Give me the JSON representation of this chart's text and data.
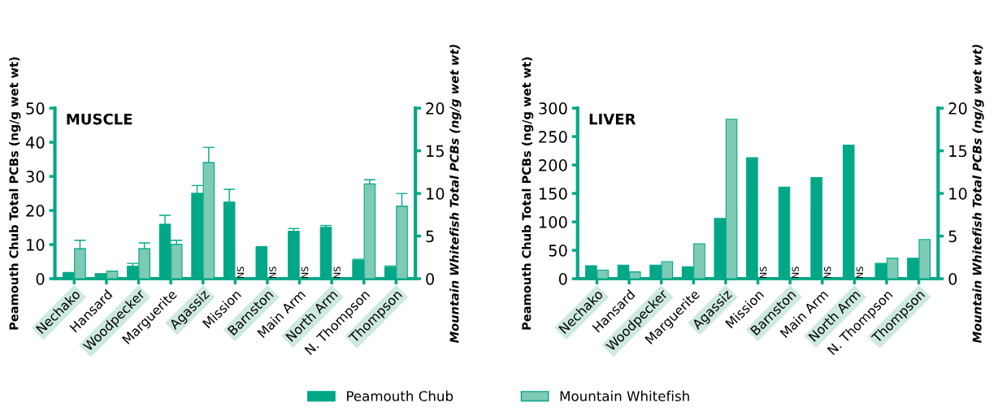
{
  "chart_data": [
    {
      "type": "bar",
      "title": "MUSCLE",
      "ylabel": "Peamouth Chub Total PCBs (ng/g wet wt)",
      "y2label": "Mountain Whitefish Total PCBs (ng/g wet wt)",
      "categories": [
        "Nechako",
        "Hansard",
        "Woodpecker",
        "Marguerite",
        "Agassiz",
        "Mission",
        "Barnston",
        "Main Arm",
        "North Arm",
        "N. Thompson",
        "Thompson"
      ],
      "series": [
        {
          "name": "Peamouth Chub",
          "color": "#00a887",
          "values": [
            1.6,
            1.5,
            3.6,
            15.9,
            25.0,
            22.4,
            9.2,
            13.9,
            15.0,
            5.3,
            3.3
          ],
          "errors": [
            [
              1.6,
              1.8
            ],
            null,
            [
              3.6,
              4.5
            ],
            [
              15.9,
              18.6
            ],
            [
              25.0,
              27.3
            ],
            [
              22.4,
              26.2
            ],
            [
              9.2,
              9.4
            ],
            [
              13.9,
              14.7
            ],
            [
              15.0,
              15.6
            ],
            [
              5.3,
              5.7
            ],
            [
              3.3,
              3.7
            ]
          ]
        },
        {
          "name": "Mountain Whitefish",
          "color": "#7dcab5",
          "axis": "y2",
          "values": [
            3.5,
            0.9,
            3.5,
            4.0,
            13.6,
            null,
            null,
            null,
            null,
            11.1,
            8.5
          ],
          "errors": [
            [
              3.5,
              4.5
            ],
            null,
            [
              3.5,
              4.2
            ],
            [
              4.0,
              4.5
            ],
            [
              13.6,
              15.4
            ],
            null,
            null,
            null,
            null,
            [
              11.1,
              11.6
            ],
            [
              8.5,
              10.0
            ]
          ]
        }
      ],
      "ylim": [
        0,
        50
      ],
      "yticks": [
        0,
        10,
        20,
        30,
        40,
        50
      ],
      "y2lim": [
        0,
        20
      ],
      "y2ticks": [
        0,
        5,
        10,
        15,
        20
      ],
      "annotations": [
        {
          "text": "NS",
          "x": "Mission",
          "y": 0
        },
        {
          "text": "NS",
          "x": "Barnston",
          "y": 0
        },
        {
          "text": "NS",
          "x": "Main Arm",
          "y": 0
        },
        {
          "text": "NS",
          "x": "North Arm",
          "y": 0
        }
      ],
      "legend": "bottom",
      "grid": false
    },
    {
      "type": "bar",
      "title": "LIVER",
      "ylabel": "Peamouth Chub Total PCBs (ng/g wet wt)",
      "y2label": "Mountain Whitefish Total PCBs (ng/g wet wt)",
      "categories": [
        "Nechako",
        "Hansard",
        "Woodpecker",
        "Marguerite",
        "Agassiz",
        "Mission",
        "Barnston",
        "Main Arm",
        "North Arm",
        "N. Thompson",
        "Thompson"
      ],
      "series": [
        {
          "name": "Peamouth Chub",
          "color": "#00a887",
          "values": [
            23,
            24,
            24,
            21,
            106,
            213,
            161,
            178,
            235,
            27,
            36
          ]
        },
        {
          "name": "Mountain Whitefish",
          "color": "#7dcab5",
          "axis": "y2",
          "values": [
            1.0,
            0.8,
            2.0,
            4.1,
            18.7,
            null,
            null,
            null,
            null,
            2.4,
            4.6
          ]
        }
      ],
      "ylim": [
        0,
        300
      ],
      "yticks": [
        0,
        50,
        100,
        150,
        200,
        250,
        300
      ],
      "y2lim": [
        0,
        20
      ],
      "y2ticks": [
        0,
        5,
        10,
        15,
        20
      ],
      "annotations": [
        {
          "text": "NS",
          "x": "Mission",
          "y": 0
        },
        {
          "text": "NS",
          "x": "Barnston",
          "y": 0
        },
        {
          "text": "NS",
          "x": "Main Arm",
          "y": 0
        },
        {
          "text": "NS",
          "x": "North Arm",
          "y": 0
        }
      ],
      "legend": "bottom",
      "grid": false
    }
  ]
}
